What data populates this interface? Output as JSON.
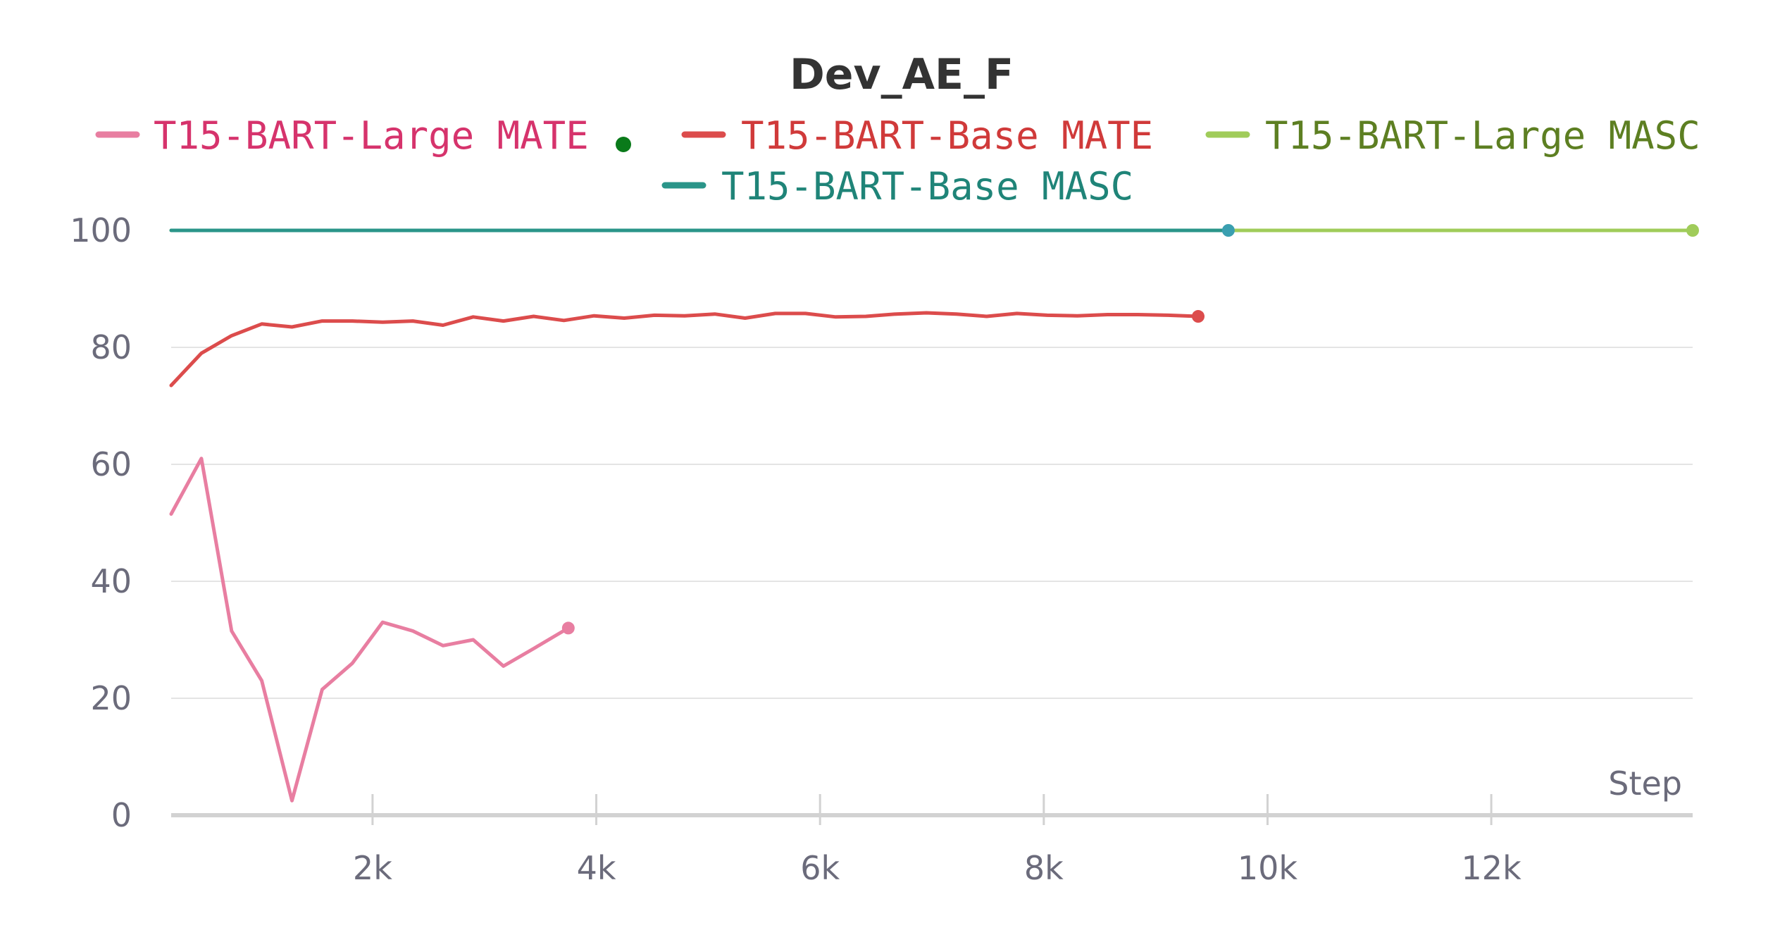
{
  "chart_data": {
    "type": "line",
    "title": "Dev_AE_F",
    "xlabel": "Step",
    "ylabel": "",
    "xlim": [
      200,
      13800
    ],
    "ylim": [
      0,
      100
    ],
    "x_ticks": [
      {
        "value": 2000,
        "label": "2k"
      },
      {
        "value": 4000,
        "label": "4k"
      },
      {
        "value": 6000,
        "label": "6k"
      },
      {
        "value": 8000,
        "label": "8k"
      },
      {
        "value": 10000,
        "label": "10k"
      },
      {
        "value": 12000,
        "label": "12k"
      }
    ],
    "y_ticks": [
      {
        "value": 0,
        "label": "0"
      },
      {
        "value": 20,
        "label": "20"
      },
      {
        "value": 40,
        "label": "40"
      },
      {
        "value": 60,
        "label": "60"
      },
      {
        "value": 80,
        "label": "80"
      },
      {
        "value": 100,
        "label": "100"
      }
    ],
    "grid": true,
    "legend_position": "top",
    "series": [
      {
        "name": "T15-BART-Large MATE",
        "color": "#e87ea1",
        "text_color": "#d6336c",
        "x": [
          200,
          470,
          740,
          1010,
          1280,
          1550,
          1820,
          2090,
          2360,
          2630,
          2900,
          3170,
          3440,
          3750
        ],
        "y": [
          51.5,
          61,
          31.5,
          23,
          2.5,
          21.5,
          26,
          33,
          31.5,
          29,
          30,
          25.5,
          28.5,
          32
        ]
      },
      {
        "name": "T15-BART-Base MATE",
        "color": "#dc4c4c",
        "text_color": "#d03a3a",
        "x": [
          200,
          470,
          740,
          1010,
          1280,
          1550,
          1820,
          2090,
          2360,
          2630,
          2900,
          3170,
          3440,
          3710,
          3980,
          4250,
          4520,
          4790,
          5060,
          5330,
          5600,
          5870,
          6140,
          6410,
          6680,
          6950,
          7220,
          7490,
          7760,
          8030,
          8300,
          8570,
          8840,
          9110,
          9380
        ],
        "y": [
          73.5,
          79,
          82,
          84,
          83.5,
          84.5,
          84.5,
          84.3,
          84.5,
          83.8,
          85.2,
          84.5,
          85.3,
          84.6,
          85.4,
          85,
          85.5,
          85.4,
          85.7,
          85,
          85.8,
          85.8,
          85.2,
          85.3,
          85.7,
          85.9,
          85.7,
          85.3,
          85.8,
          85.5,
          85.4,
          85.6,
          85.6,
          85.5,
          85.3
        ]
      },
      {
        "name": "T15-BART-Large MASC",
        "color": "#a0cc5a",
        "text_color": "#5d7f22",
        "x": [
          200,
          13800
        ],
        "y": [
          100,
          100
        ]
      },
      {
        "name": "T15-BART-Base MASC",
        "color": "#2a9589",
        "text_color": "#1f8478",
        "x": [
          200,
          9650
        ],
        "y": [
          100,
          100
        ]
      }
    ]
  },
  "colors": {
    "legend_dot": "#0a7a1a",
    "grid": "#e4e4e4",
    "axis": "#d2d2d2",
    "tick_text": "#6b6b7b",
    "title": "#333333",
    "end_dot_base_masc": "#3a9fb0"
  }
}
